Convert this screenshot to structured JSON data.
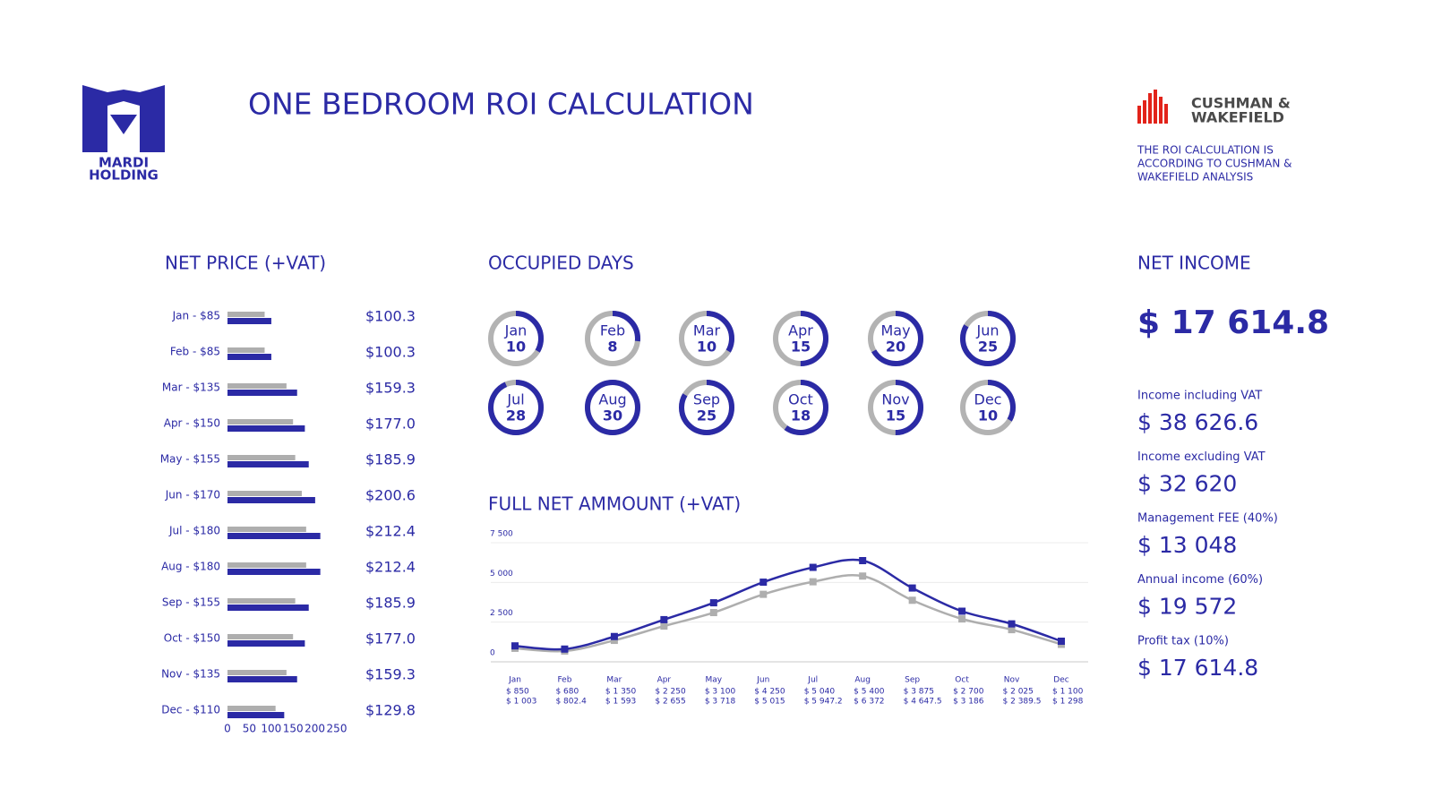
{
  "header": {
    "title": "ONE BEDROOM ROI CALCULATION",
    "logo_line1": "MARDI",
    "logo_line2": "HOLDING",
    "partner_line1": "CUSHMAN &",
    "partner_line2": "WAKEFIELD",
    "note_lines": [
      "THE ROI CALCULATION IS",
      "ACCORDING TO CUSHMAN &",
      "WAKEFIELD ANALYSIS"
    ]
  },
  "chart_data": [
    {
      "type": "hbar",
      "title": "NET PRICE (+VAT)",
      "categories": [
        "Jan - $85",
        "Feb - $85",
        "Mar - $135",
        "Apr - $150",
        "May - $155",
        "Jun - $170",
        "Jul - $180",
        "Aug - $180",
        "Sep - $155",
        "Oct - $150",
        "Nov - $135",
        "Dec - $110"
      ],
      "series": [
        {
          "color": "#aeaeae",
          "values": [
            85,
            85,
            135,
            150,
            155,
            170,
            180,
            180,
            155,
            150,
            135,
            110
          ]
        },
        {
          "color": "#2b2aa5",
          "values": [
            100.3,
            100.3,
            159.3,
            177.0,
            185.9,
            200.6,
            212.4,
            212.4,
            185.9,
            177.0,
            159.3,
            129.8
          ],
          "value_labels": [
            "$100.3",
            "$100.3",
            "$159.3",
            "$177.0",
            "$185.9",
            "$200.6",
            "$212.4",
            "$212.4",
            "$185.9",
            "$177.0",
            "$159.3",
            "$129.8"
          ]
        }
      ],
      "xlim": [
        0,
        250
      ],
      "xticks": [
        0,
        50,
        100,
        150,
        200,
        250
      ]
    },
    {
      "type": "donut",
      "title": "OCCUPIED DAYS",
      "categories": [
        "Jan",
        "Feb",
        "Mar",
        "Apr",
        "May",
        "Jun",
        "Jul",
        "Aug",
        "Sep",
        "Oct",
        "Nov",
        "Dec"
      ],
      "values": [
        10,
        8,
        10,
        15,
        20,
        25,
        28,
        30,
        25,
        18,
        15,
        10
      ],
      "color": "#2b2aa5",
      "track_color": "#b3b3b3"
    },
    {
      "type": "line",
      "title": "FULL NET AMMOUNT (+VAT)",
      "categories": [
        "Jan",
        "Feb",
        "Mar",
        "Apr",
        "May",
        "Jun",
        "Jul",
        "Aug",
        "Sep",
        "Oct",
        "Nov",
        "Dec"
      ],
      "series": [
        {
          "color": "#aeaeae",
          "values": [
            850,
            680,
            1350,
            2250,
            3100,
            4250,
            5040,
            5400,
            3875,
            2700,
            2025,
            1100
          ],
          "value_labels": [
            "$ 850",
            "$ 680",
            "$ 1 350",
            "$ 2 250",
            "$ 3 100",
            "$ 4 250",
            "$ 5 040",
            "$ 5 400",
            "$ 3 875",
            "$ 2 700",
            "$ 2 025",
            "$ 1 100"
          ]
        },
        {
          "color": "#2b2aa5",
          "values": [
            1003,
            802.4,
            1593,
            2655,
            3718,
            5015,
            5947.2,
            6372,
            4647.5,
            3186,
            2389.5,
            1298
          ],
          "value_labels": [
            "$ 1 003",
            "$ 802.4",
            "$ 1 593",
            "$ 2 655",
            "$ 3 718",
            "$ 5 015",
            "$ 5 947.2",
            "$ 6 372",
            "$ 4 647.5",
            "$ 3 186",
            "$ 2 389.5",
            "$ 1 298"
          ]
        }
      ],
      "ylim": [
        0,
        7500
      ],
      "yticks": [
        0,
        {
          "value": 2500,
          "label": "2 500"
        },
        {
          "value": 5000,
          "label": "5 000"
        },
        {
          "value": 7500,
          "label": "7 500"
        }
      ],
      "grid": true
    }
  ],
  "net_income": {
    "title": "NET INCOME",
    "total": "$ 17 614.8",
    "items": [
      {
        "label": "Income including VAT",
        "value": "$ 38 626.6"
      },
      {
        "label": "Income excluding VAT",
        "value": "$ 32 620"
      },
      {
        "label": "Management FEE (40%)",
        "value": "$ 13 048"
      },
      {
        "label": "Annual income (60%)",
        "value": "$ 19 572"
      },
      {
        "label": "Profit tax (10%)",
        "value": "$ 17 614.8"
      }
    ]
  }
}
